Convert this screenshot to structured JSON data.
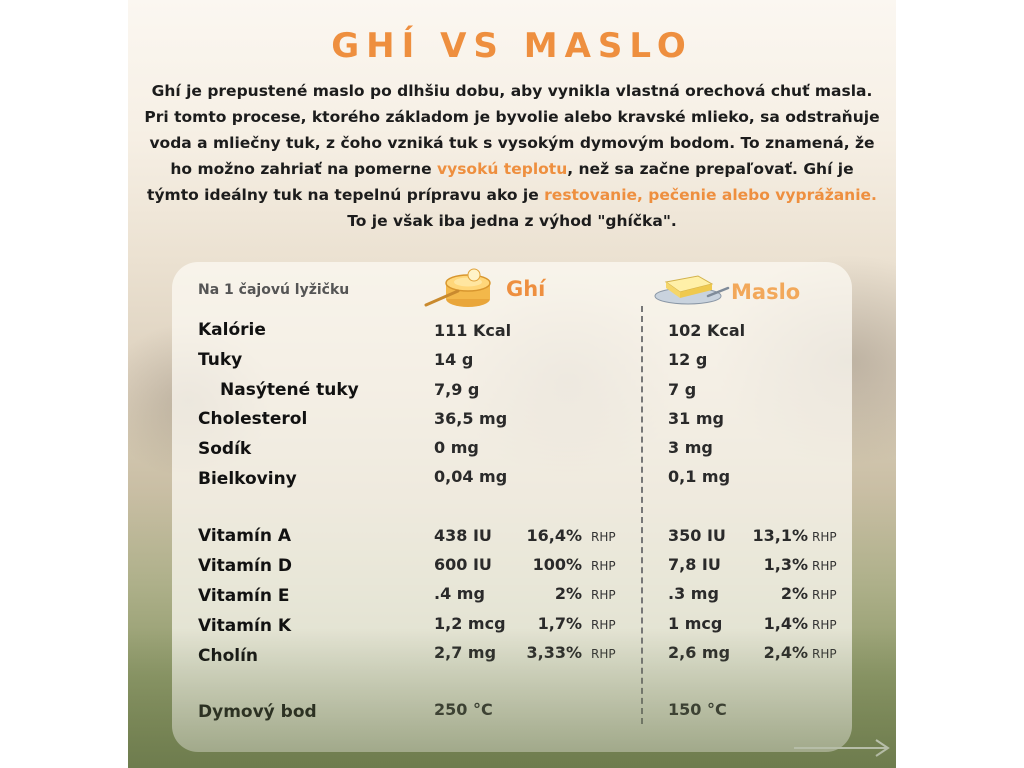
{
  "title": "GHÍ VS MASLO",
  "intro": {
    "part1": "Ghí je prepustené maslo po dlhšiu dobu, aby vynikla vlastná orechová chuť masla. Pri tomto procese, ktorého základom je byvolie alebo kravské mlieko, sa odstraňuje voda a mliečny tuk, z čoho vzniká tuk s vysokým dymovým bodom. To znamená, že ho možno zahriať na pomerne ",
    "hl1": "vysokú teplotu",
    "part2": ", než sa začne prepaľovať. Ghí je týmto ideálny tuk na tepelnú prípravu ako je ",
    "hl2": "restovanie, pečenie alebo vyprážanie.",
    "part3": " To je však iba jedna z výhod \"ghíčka\"."
  },
  "table": {
    "sub_label": "Na 1 čajovú lyžičku",
    "col_ghi": "Ghí",
    "col_maslo": "Maslo",
    "icons": {
      "ghi": "ghee-jar-spoon-icon",
      "maslo": "butter-dish-icon",
      "arrow": "arrow-right-icon"
    },
    "rows": [
      {
        "label": "Kalórie",
        "ghi": "111 Kcal",
        "maslo": "102 Kcal"
      },
      {
        "label": "Tuky",
        "ghi": "14 g",
        "maslo": "12 g"
      },
      {
        "label": "Nasýtené tuky",
        "ghi": "7,9 g",
        "maslo": "7 g"
      },
      {
        "label": "Cholesterol",
        "ghi": "36,5 mg",
        "maslo": "31 mg"
      },
      {
        "label": "Sodík",
        "ghi": "0 mg",
        "maslo": "3 mg"
      },
      {
        "label": "Bielkoviny",
        "ghi": "0,04 mg",
        "maslo": "0,1 mg"
      }
    ],
    "vitamins": [
      {
        "label": "Vitamín A",
        "ghi": "438 IU",
        "ghi_pct": "16,4%",
        "maslo": "350 IU",
        "maslo_pct": "13,1%"
      },
      {
        "label": "Vitamín D",
        "ghi": "600 IU",
        "ghi_pct": "100%",
        "maslo": "7,8 IU",
        "maslo_pct": "1,3%"
      },
      {
        "label": "Vitamín E",
        "ghi": ".4 mg",
        "ghi_pct": "2%",
        "maslo": ".3 mg",
        "maslo_pct": "2%"
      },
      {
        "label": "Vitamín K",
        "ghi": "1,2 mcg",
        "ghi_pct": "1,7%",
        "maslo": "1 mcg",
        "maslo_pct": "1,4%"
      },
      {
        "label": "Cholín",
        "ghi": "2,7 mg",
        "ghi_pct": "3,33%",
        "maslo": "2,6 mg",
        "maslo_pct": "2,4%"
      }
    ],
    "rhp": "RHP",
    "smoke": {
      "label": "Dymový bod",
      "ghi": "250 °C",
      "maslo": "150 °C"
    }
  },
  "colors": {
    "accent": "#ee8f3f",
    "accent_light": "#f2a85a"
  }
}
